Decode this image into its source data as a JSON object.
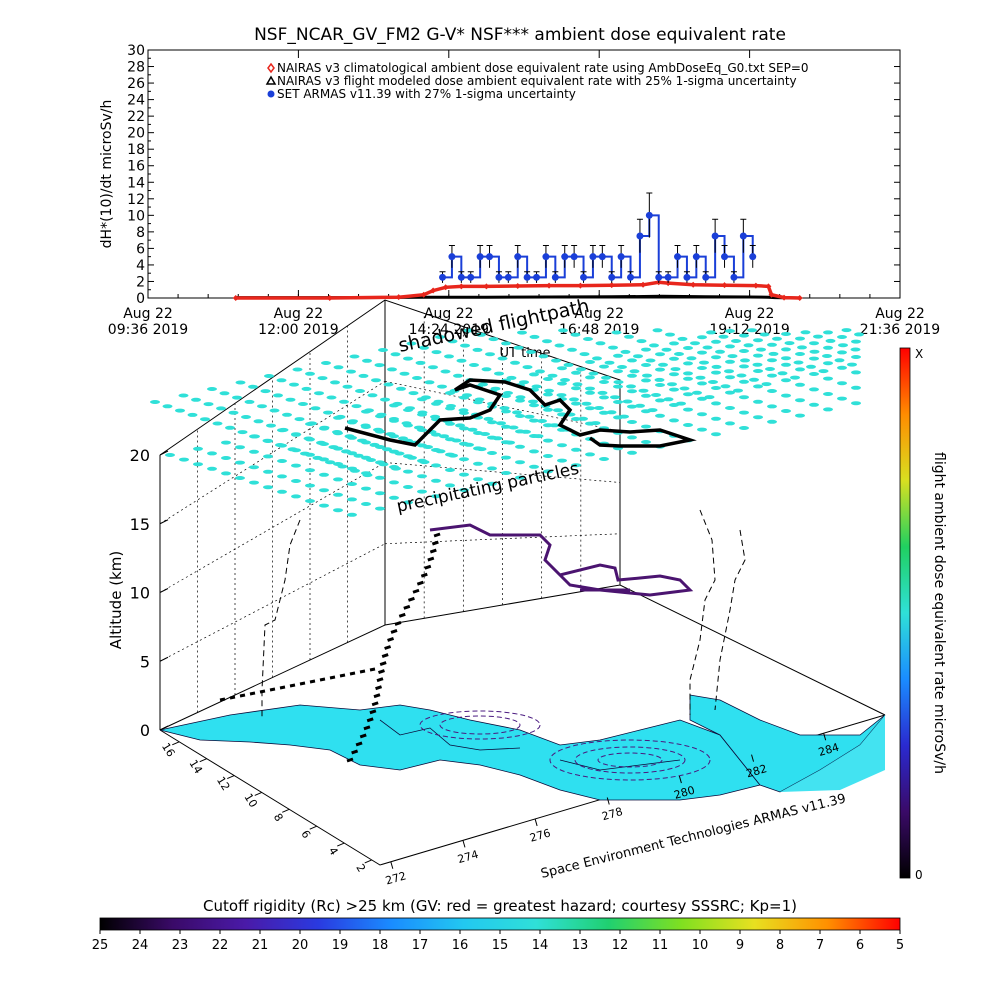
{
  "colors": {
    "background": "#ffffff",
    "climatological": "#e8261c",
    "flight_model": "#000000",
    "armas": "#1a3fd8",
    "precip_particles": "#2fe0d8",
    "land": "#2fe0f0",
    "flight_path": "#000000",
    "flight_path_dose": "#4b1470"
  },
  "chart_data": [
    {
      "type": "line",
      "title": "NSF_NCAR_GV_FM2 G-V* NSF*** ambient dose equivalent rate",
      "ylabel": "dH*(10)/dt microSv/h",
      "xlabel": "UT time",
      "ylim": [
        0,
        30
      ],
      "yticks": [
        "0",
        "2",
        "4",
        "6",
        "8",
        "10",
        "12",
        "14",
        "16",
        "18",
        "20",
        "22",
        "24",
        "26",
        "28",
        "30"
      ],
      "xticks": [
        {
          "top": "Aug 22",
          "bottom": "09:36 2019"
        },
        {
          "top": "Aug 22",
          "bottom": "12:00 2019"
        },
        {
          "top": "Aug 22",
          "bottom": "14:24 2019"
        },
        {
          "top": "Aug 22",
          "bottom": "16:48 2019"
        },
        {
          "top": "Aug 22",
          "bottom": "19:12 2019"
        },
        {
          "top": "Aug 22",
          "bottom": "21:36 2019"
        }
      ],
      "x_unit": "hours UT on Aug 22 2019",
      "xlim": [
        9.6,
        21.6
      ],
      "legend_position": "top-center",
      "series": [
        {
          "name": "NAIRAS v3 climatological ambient dose equivalent rate using AmbDoseEq_G0.txt SEP=0",
          "marker": "diamond",
          "x": [
            11.0,
            12.5,
            13.6,
            14.0,
            14.15,
            14.35,
            14.6,
            15.0,
            15.5,
            16.0,
            16.5,
            17.0,
            17.5,
            17.75,
            17.9,
            18.3,
            18.8,
            19.3,
            19.5,
            19.55,
            19.75,
            20.0
          ],
          "y": [
            0.0,
            0.0,
            0.1,
            0.4,
            0.9,
            1.3,
            1.4,
            1.4,
            1.45,
            1.5,
            1.5,
            1.55,
            1.6,
            1.9,
            1.8,
            1.6,
            1.55,
            1.5,
            1.4,
            0.4,
            0.05,
            0.0
          ]
        },
        {
          "name": "NAIRAS v3 flight modeled dose ambient equivalent rate with 25% 1-sigma uncertainty",
          "marker": "triangle",
          "x": [
            11.0,
            13.0,
            14.0,
            15.0,
            16.0,
            17.0,
            17.8,
            18.5,
            19.2,
            19.5,
            19.6,
            20.0
          ],
          "y": [
            0.05,
            0.05,
            0.1,
            0.1,
            0.12,
            0.15,
            0.2,
            0.15,
            0.12,
            0.1,
            0.05,
            0.0
          ]
        },
        {
          "name": "SET ARMAS v11.39 with 27% 1-sigma uncertainty",
          "marker": "circle",
          "x": [
            14.3,
            14.45,
            14.6,
            14.75,
            14.9,
            15.05,
            15.2,
            15.35,
            15.5,
            15.65,
            15.8,
            15.95,
            16.1,
            16.25,
            16.4,
            16.55,
            16.7,
            16.85,
            17.0,
            17.15,
            17.3,
            17.45,
            17.6,
            17.75,
            17.9,
            18.05,
            18.2,
            18.35,
            18.5,
            18.65,
            18.8,
            18.95,
            19.1,
            19.25
          ],
          "y": [
            2.5,
            5.0,
            2.5,
            2.5,
            5.0,
            5.0,
            2.5,
            2.5,
            5.0,
            2.5,
            2.5,
            5.0,
            2.5,
            5.0,
            5.0,
            2.5,
            5.0,
            5.0,
            2.5,
            5.0,
            2.5,
            7.5,
            10.0,
            2.5,
            2.5,
            5.0,
            2.5,
            5.0,
            2.5,
            7.5,
            5.0,
            2.5,
            7.5,
            5.0
          ],
          "error_pct": 27
        }
      ]
    },
    {
      "type": "scatter",
      "title": "",
      "zlabel": "Altitude (km)",
      "ztick_labels": [
        "0",
        "5",
        "10",
        "15",
        "20"
      ],
      "zlim": [
        0,
        20
      ],
      "longitude_ticks": [
        "272",
        "274",
        "276",
        "278",
        "280",
        "282",
        "284"
      ],
      "latitude_ticks": [
        "2",
        "4",
        "6",
        "8",
        "10",
        "12",
        "14",
        "16"
      ],
      "annotations": [
        "shadowed flightpath",
        "precipitating particles"
      ],
      "credit": "Space Environment Technologies ARMAS v11.39",
      "colorbar": {
        "label": "flight ambient dose equivalent rate microSv/h",
        "top_label": "X",
        "bottom_label": "0",
        "colors": [
          "#000000",
          "#3a0a68",
          "#2a2ad0",
          "#1a8cff",
          "#2fe0d8",
          "#20d060",
          "#d8e020",
          "#ff8c00",
          "#ff0000"
        ]
      }
    },
    {
      "type": "heatmap",
      "title": "Cutoff rigidity (Rc) >25 km (GV: red = greatest hazard; courtesy SSSRC; Kp=1)",
      "tick_labels": [
        "25",
        "24",
        "23",
        "22",
        "21",
        "20",
        "19",
        "18",
        "17",
        "16",
        "15",
        "14",
        "13",
        "12",
        "11",
        "10",
        "9",
        "8",
        "7",
        "6",
        "5"
      ],
      "colors": [
        "#000000",
        "#3a0a68",
        "#4a1aa8",
        "#2a3ae0",
        "#1a8cff",
        "#22c8f0",
        "#2fe0d8",
        "#20d070",
        "#80e020",
        "#e8e020",
        "#ff9000",
        "#ff0000"
      ]
    }
  ]
}
